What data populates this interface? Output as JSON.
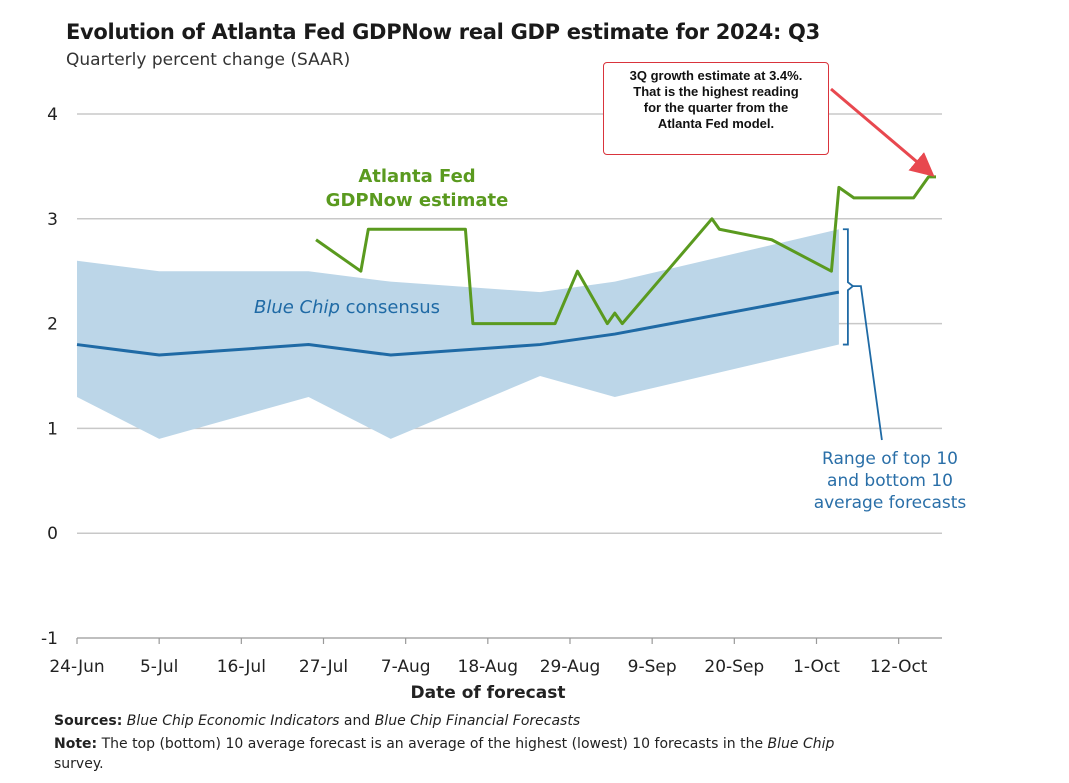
{
  "title": "Evolution of Atlanta Fed GDPNow real GDP estimate for 2024: Q3",
  "subtitle": "Quarterly percent change (SAAR)",
  "callout": {
    "lines": [
      "3Q growth estimate at 3.4%.",
      "That is the highest reading",
      "for the quarter from the",
      "Atlanta Fed model."
    ]
  },
  "labels": {
    "gdpnow_line1": "Atlanta Fed",
    "gdpnow_line2": "GDPNow estimate",
    "consensus_italic": "Blue Chip",
    "consensus_rest": " consensus",
    "range_lines": [
      "Range of top 10",
      "and bottom 10",
      "average forecasts"
    ]
  },
  "footer": {
    "sources_label": "Sources:",
    "sources_italic1": "Blue Chip Economic Indicators",
    "sources_mid": " and ",
    "sources_italic2": "Blue Chip Financial Forecasts",
    "note_label": "Note:",
    "note_text": " The top (bottom) 10 average forecast is an average of the highest (lowest) 10 forecasts in the ",
    "note_italic": "Blue Chip",
    "note_end": "survey."
  },
  "colors": {
    "gdpnow": "#5a9a1f",
    "consensus": "#1f6aa5",
    "band": "#bcd6e8",
    "grid": "#c8c8c8",
    "callout_border": "#d9343c",
    "arrow": "#e8484f"
  },
  "chart_data": {
    "type": "line",
    "title": "Evolution of Atlanta Fed GDPNow real GDP estimate for 2024: Q3",
    "xlabel": "Date of forecast",
    "ylabel": "Quarterly percent change (SAAR)",
    "ylim": [
      -1,
      4
    ],
    "yticks": [
      -1,
      0,
      1,
      2,
      3,
      4
    ],
    "x_domain_days": [
      0,
      115
    ],
    "xtick_labels": [
      "24-Jun",
      "5-Jul",
      "16-Jul",
      "27-Jul",
      "7-Aug",
      "18-Aug",
      "29-Aug",
      "9-Sep",
      "20-Sep",
      "1-Oct",
      "12-Oct"
    ],
    "xtick_days": [
      0,
      11,
      22,
      33,
      44,
      55,
      66,
      77,
      88,
      99,
      110
    ],
    "series": [
      {
        "name": "Atlanta Fed GDPNow estimate",
        "x_days": [
          32,
          38,
          39,
          52,
          53,
          64,
          67,
          71,
          72,
          73,
          79,
          85,
          86,
          93,
          101,
          102,
          104,
          107,
          112,
          114,
          115
        ],
        "values": [
          2.8,
          2.5,
          2.9,
          2.9,
          2.0,
          2.0,
          2.5,
          2.0,
          2.1,
          2.0,
          2.5,
          3.0,
          2.9,
          2.8,
          2.5,
          3.3,
          3.2,
          3.2,
          3.2,
          3.4,
          3.4
        ]
      },
      {
        "name": "Blue Chip consensus",
        "x_days": [
          0,
          11,
          31,
          42,
          62,
          72,
          102
        ],
        "values": [
          1.8,
          1.7,
          1.8,
          1.7,
          1.8,
          1.9,
          2.3
        ]
      },
      {
        "name": "Range of top 10 average forecasts",
        "x_days": [
          0,
          11,
          31,
          42,
          62,
          72,
          102
        ],
        "values": [
          2.6,
          2.5,
          2.5,
          2.4,
          2.3,
          2.4,
          2.9
        ]
      },
      {
        "name": "Range of bottom 10 average forecasts",
        "x_days": [
          0,
          11,
          31,
          42,
          62,
          72,
          102
        ],
        "values": [
          1.3,
          0.9,
          1.3,
          0.9,
          1.5,
          1.3,
          1.8
        ]
      }
    ]
  }
}
